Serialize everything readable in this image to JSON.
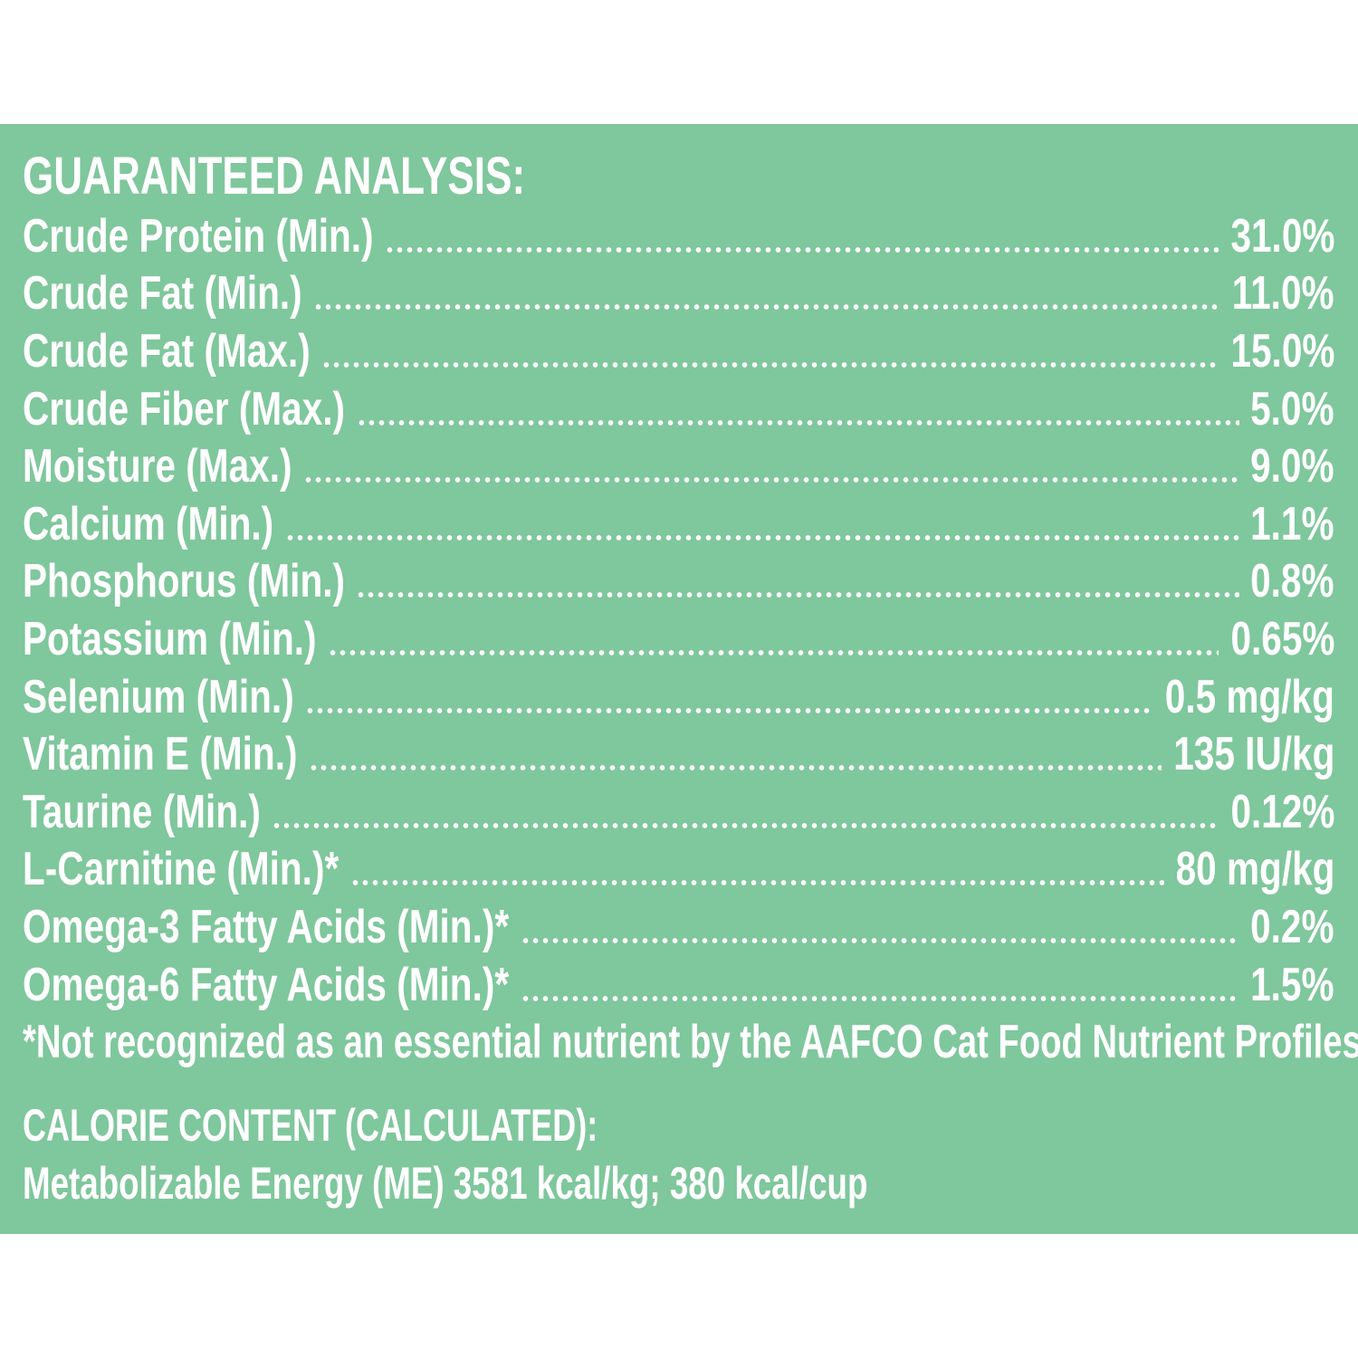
{
  "guaranteed_analysis": {
    "title": "GUARANTEED ANALYSIS:",
    "rows": [
      {
        "label": "Crude Protein (Min.)",
        "value": "31.0%"
      },
      {
        "label": "Crude Fat (Min.)",
        "value": "11.0%"
      },
      {
        "label": "Crude Fat (Max.)",
        "value": "15.0%"
      },
      {
        "label": "Crude Fiber (Max.)",
        "value": "5.0%"
      },
      {
        "label": "Moisture (Max.)",
        "value": "9.0%"
      },
      {
        "label": "Calcium (Min.)",
        "value": "1.1%"
      },
      {
        "label": "Phosphorus (Min.)",
        "value": "0.8%"
      },
      {
        "label": "Potassium (Min.)",
        "value": "0.65%"
      },
      {
        "label": "Selenium (Min.)",
        "value": "0.5 mg/kg"
      },
      {
        "label": "Vitamin E (Min.)",
        "value": "135 IU/kg"
      },
      {
        "label": "Taurine (Min.)",
        "value": "0.12%"
      },
      {
        "label": "L-Carnitine (Min.)*",
        "value": "80 mg/kg"
      },
      {
        "label": "Omega-3 Fatty Acids (Min.)*",
        "value": "0.2%"
      },
      {
        "label": "Omega-6 Fatty Acids (Min.)*",
        "value": "1.5%"
      }
    ],
    "footnote": "*Not recognized as an essential nutrient by the AAFCO Cat Food Nutrient Profiles."
  },
  "calorie_content": {
    "title": "CALORIE CONTENT (CALCULATED):",
    "value": "Metabolizable Energy (ME) 3581 kcal/kg;  380 kcal/cup"
  },
  "colors": {
    "panel_background": "#7fc79c",
    "text": "#ffffff",
    "page_background": "#ffffff"
  }
}
